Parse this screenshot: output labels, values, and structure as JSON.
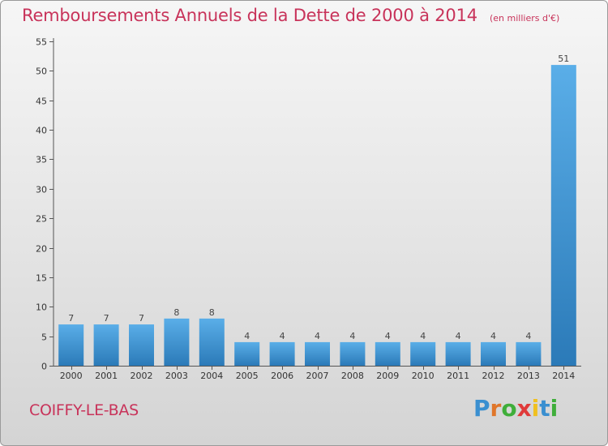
{
  "title": "Remboursements Annuels de la Dette de 2000 à 2014",
  "unit_note": "(en milliers d'€)",
  "place_name": "COIFFY-LE-BAS",
  "brand": {
    "letters": [
      "P",
      "r",
      "o",
      "x",
      "i",
      "t",
      "i"
    ],
    "colors": [
      "#3a8fd0",
      "#e0762a",
      "#3fae3a",
      "#e03a3a",
      "#f0c020",
      "#3a8fd0",
      "#3fae3a"
    ]
  },
  "colors": {
    "bar_top": "#5aaee8",
    "bar_bottom": "#2b7ab8",
    "title": "#c8335a"
  },
  "chart_data": {
    "type": "bar",
    "categories": [
      "2000",
      "2001",
      "2002",
      "2003",
      "2004",
      "2005",
      "2006",
      "2007",
      "2008",
      "2009",
      "2010",
      "2011",
      "2012",
      "2013",
      "2014"
    ],
    "values": [
      7,
      7,
      7,
      8,
      8,
      4,
      4,
      4,
      4,
      4,
      4,
      4,
      4,
      4,
      51
    ],
    "ylim": [
      0,
      55
    ],
    "yticks": [
      0,
      5,
      10,
      15,
      20,
      25,
      30,
      35,
      40,
      45,
      50,
      55
    ],
    "grid": false
  }
}
